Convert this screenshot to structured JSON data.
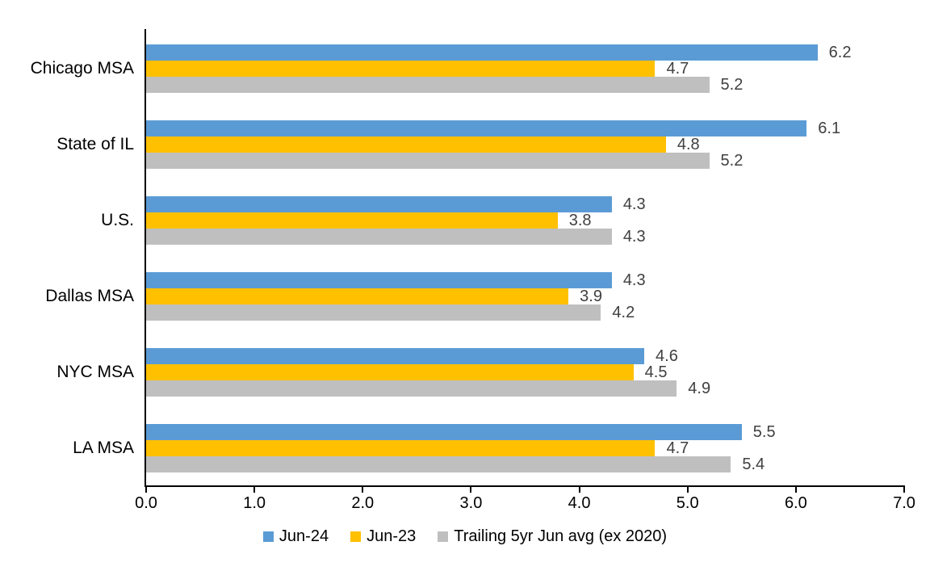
{
  "chart_data": {
    "type": "bar",
    "orientation": "horizontal",
    "title": "",
    "xlabel": "",
    "ylabel": "",
    "categories": [
      "Chicago MSA",
      "State of IL",
      "U.S.",
      "Dallas MSA",
      "NYC MSA",
      "LA MSA"
    ],
    "series": [
      {
        "name": "Jun-24",
        "color": "#5B9BD5",
        "values": [
          6.2,
          6.1,
          4.3,
          4.3,
          4.6,
          5.5
        ]
      },
      {
        "name": "Jun-23",
        "color": "#FFC000",
        "values": [
          4.7,
          4.8,
          3.8,
          3.9,
          4.5,
          4.7
        ]
      },
      {
        "name": "Trailing 5yr Jun avg (ex 2020)",
        "color": "#BFBFBF",
        "values": [
          5.2,
          5.2,
          4.3,
          4.2,
          4.9,
          5.4
        ]
      }
    ],
    "xlim": [
      0.0,
      7.0
    ],
    "x_ticks": [
      "0.0",
      "1.0",
      "2.0",
      "3.0",
      "4.0",
      "5.0",
      "6.0",
      "7.0"
    ],
    "grid": false,
    "data_labels": true,
    "legend_position": "bottom",
    "axis_color": "#000000",
    "category_label_color": "#000000",
    "value_label_color": "#404040",
    "background_color": "#FFFFFF"
  }
}
